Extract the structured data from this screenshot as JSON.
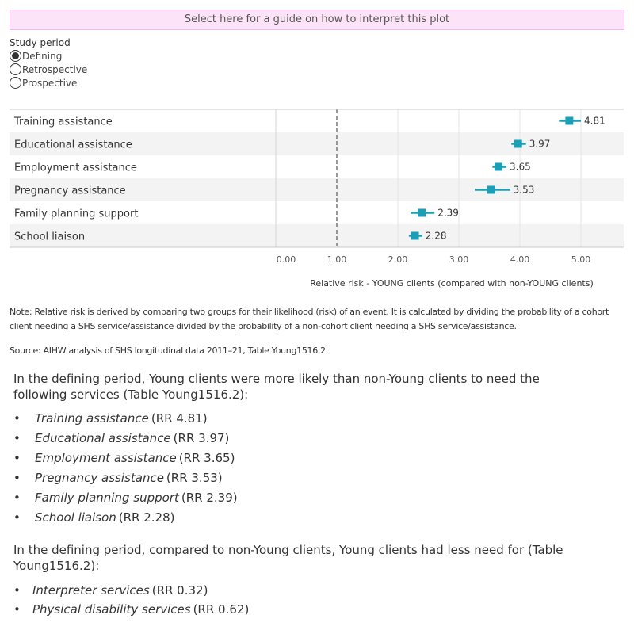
{
  "guide_button": "Select here for a guide on how to interpret this plot",
  "study_period": {
    "label": "Study period",
    "options": [
      "Defining",
      "Retrospective",
      "Prospective"
    ],
    "selected": "Defining"
  },
  "chart_data": {
    "type": "forest",
    "categories": [
      "Training assistance",
      "Educational assistance",
      "Employment assistance",
      "Pregnancy assistance",
      "Family planning support",
      "School liaison"
    ],
    "values": [
      4.81,
      3.97,
      3.65,
      3.53,
      2.39,
      2.28
    ],
    "ci_lower": [
      4.64,
      3.86,
      3.55,
      3.26,
      2.21,
      2.18
    ],
    "ci_upper": [
      5.0,
      4.1,
      3.78,
      3.84,
      2.6,
      2.4
    ],
    "data_labels": [
      "4.81",
      "3.97",
      "3.65",
      "3.53",
      "2.39",
      "2.28"
    ],
    "xlabel": "Relative risk - YOUNG clients (compared with non-YOUNG clients)",
    "xticks": [
      "0.00",
      "1.00",
      "2.00",
      "3.00",
      "4.00",
      "5.00"
    ],
    "xlim": [
      0,
      5.7
    ],
    "reference_line": 1.0,
    "grid": true,
    "marker_color": "#1a9fb6",
    "band_color": "#f3f3f3"
  },
  "note": "Note: Relative risk is derived by comparing two groups for their likelihood (risk) of an event. It is calculated by dividing the probability of a cohort client needing a SHS service/assistance divided by the probability of a non-cohort client needing a SHS service/assistance.",
  "source": "Source: AIHW analysis of SHS longitudinal data 2011–21, Table Young1516.2.",
  "para1": "In the defining period, Young clients were more likely than non-Young clients to need the following services (Table Young1516.2):",
  "list1": [
    {
      "name": "Training assistance",
      "rr": "(RR 4.81)"
    },
    {
      "name": "Educational assistance",
      "rr": "(RR 3.97)"
    },
    {
      "name": "Employment assistance",
      "rr": "(RR 3.65)"
    },
    {
      "name": "Pregnancy assistance",
      "rr": "(RR 3.53)"
    },
    {
      "name": "Family planning support",
      "rr": "(RR 2.39)"
    },
    {
      "name": "School liaison",
      "rr": "(RR 2.28)"
    }
  ],
  "para2": "In the defining period, compared to non-Young clients, Young clients had less need for (Table Young1516.2):",
  "list2": [
    {
      "name": "Interpreter services",
      "rr": "(RR 0.32)"
    },
    {
      "name": "Physical disability services",
      "rr": "(RR 0.62)"
    }
  ],
  "bullet": "•"
}
